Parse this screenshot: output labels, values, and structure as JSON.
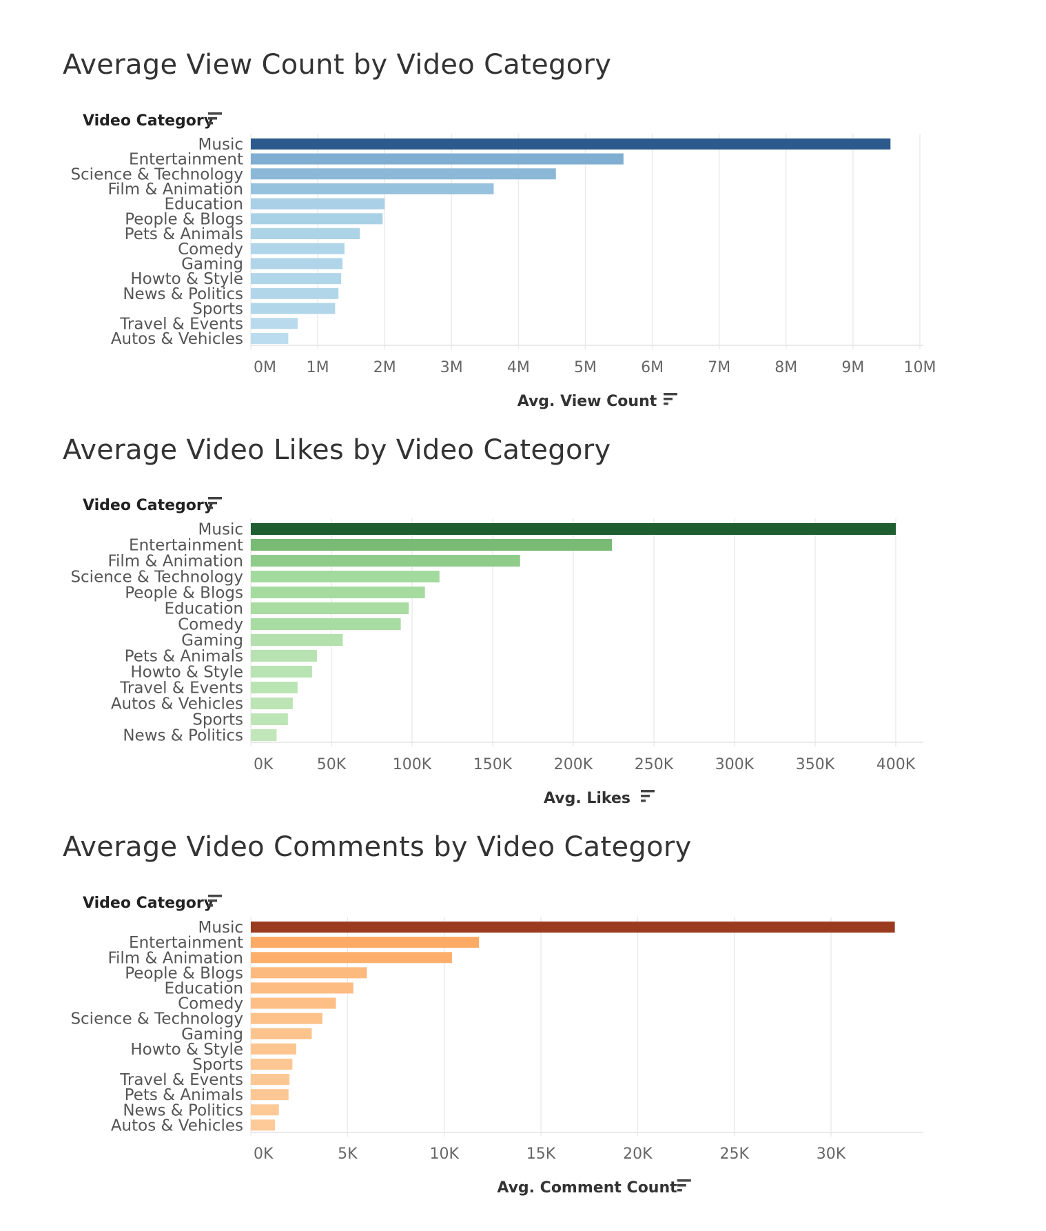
{
  "chart_data": [
    {
      "type": "bar",
      "orientation": "horizontal",
      "title": "Average View Count by Video Category",
      "ylabel": "Video Category",
      "xlabel": "Avg. View Count",
      "categories": [
        "Music",
        "Entertainment",
        "Science & Technology",
        "Film & Animation",
        "Education",
        "People & Blogs",
        "Pets & Animals",
        "Comedy",
        "Gaming",
        "Howto & Style",
        "News & Politics",
        "Sports",
        "Travel & Events",
        "Autos & Vehicles"
      ],
      "values": [
        9560000,
        5570000,
        4560000,
        3630000,
        2000000,
        1970000,
        1630000,
        1400000,
        1370000,
        1350000,
        1310000,
        1260000,
        700000,
        560000
      ],
      "xlim": [
        0,
        10000000
      ],
      "ticks": [
        0,
        1000000,
        2000000,
        3000000,
        4000000,
        5000000,
        6000000,
        7000000,
        8000000,
        9000000,
        10000000
      ],
      "tick_labels": [
        "0M",
        "1M",
        "2M",
        "3M",
        "4M",
        "5M",
        "6M",
        "7M",
        "8M",
        "9M",
        "10M"
      ],
      "color_scale": [
        "#c6e2f2",
        "#9ecae1",
        "#6f9fc8",
        "#2c5a8c"
      ],
      "grid": true,
      "legend": "none"
    },
    {
      "type": "bar",
      "orientation": "horizontal",
      "title": "Average Video Likes by Video Category",
      "ylabel": "Video Category",
      "xlabel": "Avg. Likes",
      "categories": [
        "Music",
        "Entertainment",
        "Film & Animation",
        "Science & Technology",
        "People & Blogs",
        "Education",
        "Comedy",
        "Gaming",
        "Pets & Animals",
        "Howto & Style",
        "Travel & Events",
        "Autos & Vehicles",
        "Sports",
        "News & Politics"
      ],
      "values": [
        400000,
        224000,
        167000,
        117000,
        108000,
        98000,
        93000,
        57000,
        41000,
        38000,
        29000,
        26000,
        23000,
        16000
      ],
      "xlim": [
        0,
        420000
      ],
      "ticks": [
        0,
        50000,
        100000,
        150000,
        200000,
        250000,
        300000,
        350000,
        400000
      ],
      "tick_labels": [
        "0K",
        "50K",
        "100K",
        "150K",
        "200K",
        "250K",
        "300K",
        "350K",
        "400K"
      ],
      "color_scale": [
        "#c7e9c0",
        "#a1d99b",
        "#5fa85a",
        "#1f5e30"
      ],
      "grid": true,
      "legend": "none"
    },
    {
      "type": "bar",
      "orientation": "horizontal",
      "title": "Average Video Comments by Video Category",
      "ylabel": "Video Category",
      "xlabel": "Avg. Comment Count",
      "categories": [
        "Music",
        "Entertainment",
        "Film & Animation",
        "People & Blogs",
        "Education",
        "Comedy",
        "Science & Technology",
        "Gaming",
        "Howto & Style",
        "Sports",
        "Travel & Events",
        "Pets & Animals",
        "News & Politics",
        "Autos & Vehicles"
      ],
      "values": [
        33300,
        11800,
        10400,
        6000,
        5300,
        4400,
        3700,
        3150,
        2350,
        2150,
        2000,
        1950,
        1450,
        1250
      ],
      "xlim": [
        0,
        35000
      ],
      "ticks": [
        0,
        5000,
        10000,
        15000,
        20000,
        25000,
        30000
      ],
      "tick_labels": [
        "0K",
        "5K",
        "10K",
        "15K",
        "20K",
        "25K",
        "30K"
      ],
      "color_scale": [
        "#fdd0a2",
        "#fdae6b",
        "#f08a2e",
        "#9a3a1e"
      ],
      "grid": true,
      "legend": "none"
    }
  ]
}
